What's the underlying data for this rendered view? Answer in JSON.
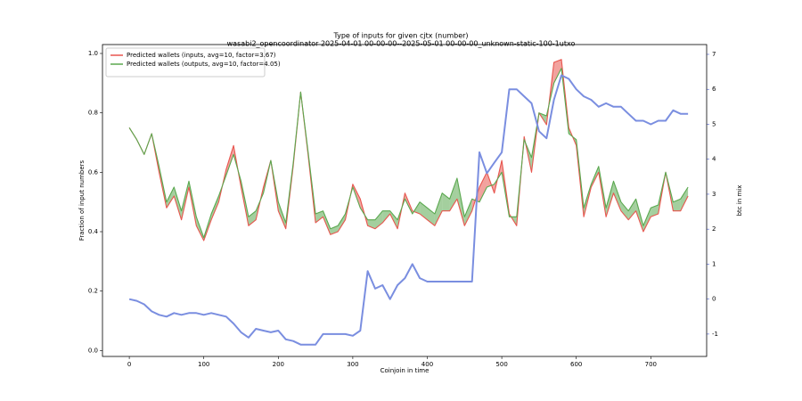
{
  "chart_data": {
    "type": "line",
    "title": "Type of inputs for given cjtx (number)",
    "subtitle": "wasabi2_opencoordinator 2025-04-01 00-00-00--2025-05-01 00-00-00_unknown-static-100-1utxo",
    "x_label": "Coinjoin in time",
    "y_label": "Fraction of input numbers",
    "y2_label": "btc in mix",
    "legend": "upper left",
    "fill_between": true,
    "x": [
      0,
      10,
      20,
      30,
      40,
      50,
      60,
      70,
      80,
      90,
      100,
      110,
      120,
      130,
      140,
      150,
      160,
      170,
      180,
      190,
      200,
      210,
      220,
      230,
      240,
      250,
      260,
      270,
      280,
      290,
      300,
      310,
      320,
      330,
      340,
      350,
      360,
      370,
      380,
      390,
      400,
      410,
      420,
      430,
      440,
      450,
      460,
      470,
      480,
      490,
      500,
      510,
      520,
      530,
      540,
      550,
      560,
      570,
      580,
      590,
      600,
      610,
      620,
      630,
      640,
      650,
      660,
      670,
      680,
      690,
      700,
      710,
      720,
      730,
      740,
      750
    ],
    "series": [
      {
        "name": "Predicted wallets (inputs, avg=10, factor=3.67)",
        "color": "#e8564f",
        "values": [
          0.75,
          0.71,
          0.66,
          0.73,
          0.6,
          0.48,
          0.52,
          0.44,
          0.55,
          0.42,
          0.37,
          0.44,
          0.5,
          0.61,
          0.69,
          0.55,
          0.42,
          0.44,
          0.55,
          0.64,
          0.47,
          0.41,
          0.62,
          0.87,
          0.66,
          0.43,
          0.45,
          0.39,
          0.4,
          0.44,
          0.56,
          0.51,
          0.42,
          0.41,
          0.43,
          0.46,
          0.41,
          0.53,
          0.47,
          0.46,
          0.44,
          0.42,
          0.47,
          0.47,
          0.51,
          0.42,
          0.47,
          0.55,
          0.6,
          0.53,
          0.64,
          0.46,
          0.42,
          0.72,
          0.6,
          0.8,
          0.76,
          0.97,
          0.98,
          0.75,
          0.69,
          0.45,
          0.55,
          0.6,
          0.45,
          0.53,
          0.47,
          0.44,
          0.47,
          0.4,
          0.45,
          0.46,
          0.6,
          0.47,
          0.47,
          0.52
        ]
      },
      {
        "name": "Predicted wallets (outputs, avg=10, factor=4.05)",
        "color": "#5aa84f",
        "values": [
          0.75,
          0.71,
          0.66,
          0.73,
          0.62,
          0.5,
          0.55,
          0.47,
          0.57,
          0.45,
          0.38,
          0.46,
          0.52,
          0.59,
          0.66,
          0.57,
          0.45,
          0.47,
          0.53,
          0.64,
          0.5,
          0.43,
          0.63,
          0.87,
          0.67,
          0.46,
          0.47,
          0.41,
          0.42,
          0.46,
          0.55,
          0.48,
          0.44,
          0.44,
          0.47,
          0.47,
          0.44,
          0.51,
          0.46,
          0.5,
          0.48,
          0.46,
          0.53,
          0.51,
          0.58,
          0.45,
          0.51,
          0.5,
          0.55,
          0.56,
          0.6,
          0.45,
          0.45,
          0.71,
          0.65,
          0.8,
          0.79,
          0.9,
          0.95,
          0.73,
          0.71,
          0.48,
          0.56,
          0.62,
          0.48,
          0.57,
          0.5,
          0.47,
          0.51,
          0.42,
          0.48,
          0.49,
          0.6,
          0.5,
          0.51,
          0.55
        ]
      },
      {
        "name": "btc in mix",
        "color": "#7a8ee0",
        "axis": "y2",
        "legend": false,
        "values": [
          0.0,
          -0.05,
          -0.15,
          -0.35,
          -0.45,
          -0.5,
          -0.4,
          -0.45,
          -0.4,
          -0.4,
          -0.45,
          -0.4,
          -0.45,
          -0.5,
          -0.7,
          -0.95,
          -1.1,
          -0.85,
          -0.9,
          -0.95,
          -0.9,
          -1.15,
          -1.2,
          -1.3,
          -1.3,
          -1.3,
          -1.0,
          -1.0,
          -1.0,
          -1.0,
          -1.05,
          -0.9,
          0.8,
          0.3,
          0.4,
          0.0,
          0.4,
          0.6,
          1.0,
          0.6,
          0.5,
          0.5,
          0.5,
          0.5,
          0.5,
          0.5,
          0.5,
          4.2,
          3.6,
          3.9,
          4.2,
          6.0,
          6.0,
          5.8,
          5.6,
          4.8,
          4.6,
          5.7,
          6.4,
          6.3,
          6.0,
          5.8,
          5.7,
          5.5,
          5.6,
          5.5,
          5.5,
          5.3,
          5.1,
          5.1,
          5.0,
          5.1,
          5.1,
          5.4,
          5.3,
          5.3
        ]
      }
    ],
    "xlim": [
      -36,
      775
    ],
    "xticks": [
      0,
      100,
      200,
      300,
      400,
      500,
      600,
      700
    ],
    "ylim": [
      -0.02,
      1.03
    ],
    "yticks": [
      {
        "value": 0,
        "label": "0.0"
      },
      {
        "value": 0.2,
        "label": "0.2"
      },
      {
        "value": 0.4,
        "label": "0.4"
      },
      {
        "value": 0.6,
        "label": "0.6"
      },
      {
        "value": 0.8,
        "label": "0.8"
      },
      {
        "value": 1,
        "label": "1.0"
      }
    ],
    "y2lim": [
      -1.64,
      7.28
    ],
    "y2ticks": [
      -1,
      0,
      1,
      2,
      3,
      4,
      5,
      6,
      7
    ],
    "y2_color": "#4b5fd6"
  }
}
